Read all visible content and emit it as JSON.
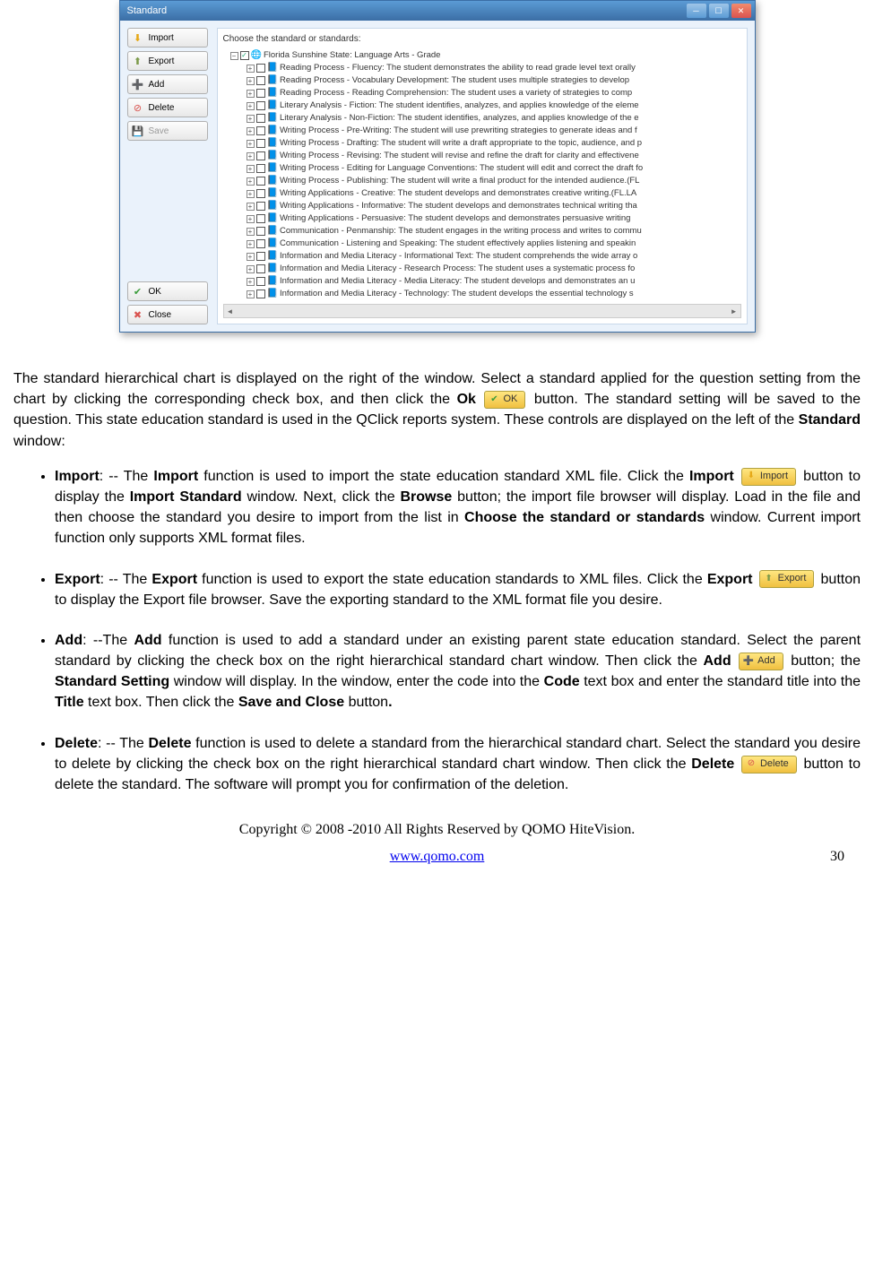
{
  "window": {
    "title": "Standard",
    "panel_label": "Choose the standard or standards:",
    "sidebar": {
      "import": "Import",
      "export": "Export",
      "add": "Add",
      "delete": "Delete",
      "save": "Save",
      "ok": "OK",
      "close": "Close"
    },
    "tree": {
      "root": "Florida Sunshine State: Language Arts - Grade",
      "children": [
        "Reading Process - Fluency: The student demonstrates the ability to read grade level text orally",
        "Reading Process - Vocabulary Development: The student uses multiple strategies to develop",
        "Reading Process - Reading Comprehension: The student uses a variety of strategies to comp",
        "Literary Analysis - Fiction: The student identifies, analyzes, and applies knowledge of the eleme",
        "Literary Analysis - Non-Fiction: The student identifies, analyzes, and applies knowledge of the e",
        "Writing Process - Pre-Writing: The student will use prewriting strategies to generate ideas and f",
        "Writing Process - Drafting: The student will write a draft appropriate to the topic, audience, and p",
        "Writing Process - Revising: The student will revise and refine the draft for clarity and effectivene",
        "Writing Process - Editing for Language Conventions: The student will edit and correct the draft fo",
        "Writing Process - Publishing: The student will write a final product for the intended audience.(FL",
        "Writing Applications - Creative: The student develops and demonstrates creative writing.(FL.LA",
        "Writing Applications - Informative: The student develops and demonstrates technical writing tha",
        "Writing Applications - Persuasive: The student develops and demonstrates persuasive writing",
        "Communication - Penmanship: The student engages in the writing process and writes to commu",
        "Communication - Listening and Speaking: The student effectively applies listening and speakin",
        "Information and Media Literacy - Informational Text: The student comprehends the wide array o",
        "Information and Media Literacy - Research Process: The student uses a systematic process fo",
        "Information and Media Literacy - Media Literacy: The student develops and demonstrates an u",
        "Information and Media Literacy - Technology: The student develops the essential technology s"
      ]
    }
  },
  "doc": {
    "p1_a": "The standard hierarchical chart is displayed on the right of the window. Select a standard applied for the question setting from the chart by clicking the corresponding check box, and then click the ",
    "p1_bold1": "Ok",
    "p1_btn1": "OK",
    "p1_b": " button. The standard setting will be saved to the question. This state education standard is used in the QClick reports system. These controls are displayed on the left of the ",
    "p1_bold2": "Standard",
    "p1_c": " window:",
    "import": {
      "t1": "Import",
      "t2": ": -- The ",
      "t3": "Import",
      "t4": " function is used to import the state education standard XML file. Click the ",
      "t5": "Import",
      "btn": "Import",
      "t6": " button to display the ",
      "t7": "Import Standard",
      "t8": " window. Next, click the ",
      "t9": "Browse",
      "t10": " button; the import file browser will display. Load in the file and then choose the standard you desire to import from the list in ",
      "t11": "Choose the standard or standards",
      "t12": " window. Current import function only supports XML format files."
    },
    "export": {
      "t1": "Export",
      "t2": ": -- The ",
      "t3": "Export",
      "t4": " function is used to export the state education standards to XML files. Click the ",
      "t5": "Export",
      "btn": "Export",
      "t6": " button to display the Export file browser. Save the exporting standard to the XML format file you desire."
    },
    "add": {
      "t1": "Add",
      "t2": ": --The ",
      "t3": "Add",
      "t4": " function is used to add a standard under an existing parent state education standard. Select the parent standard by clicking the check box on the right hierarchical standard chart window. Then click the ",
      "t5": "Add",
      "btn": "Add",
      "t6": " button; the ",
      "t7": "Standard Setting",
      "t8": " window will display. In the window, enter the code into the ",
      "t9": "Code",
      "t10": " text box and enter the standard title into the ",
      "t11": "Title",
      "t12": " text box. Then click the ",
      "t13": "Save and Close",
      "t14": " button",
      "t15": "."
    },
    "delete": {
      "t1": "Delete",
      "t2": ": -- The ",
      "t3": "Delete",
      "t4": " function is used to delete a standard from the hierarchical standard chart. Select the standard you desire to delete by clicking the check box on the right hierarchical standard chart window. Then click the ",
      "t5": "Delete",
      "btn": "Delete",
      "t6": " button to delete the standard. The software will prompt you for confirmation of the deletion."
    }
  },
  "footer": {
    "copyright": "Copyright © 2008 -2010 All Rights Reserved by QOMO HiteVision.",
    "link": "www.qomo.com",
    "page": "30"
  },
  "colors": {
    "titlebar_start": "#5b9bd5",
    "titlebar_end": "#3b6ea5",
    "window_bg": "#eaf2fb",
    "btn_yellow_start": "#ffe680",
    "btn_yellow_end": "#f0c040"
  }
}
